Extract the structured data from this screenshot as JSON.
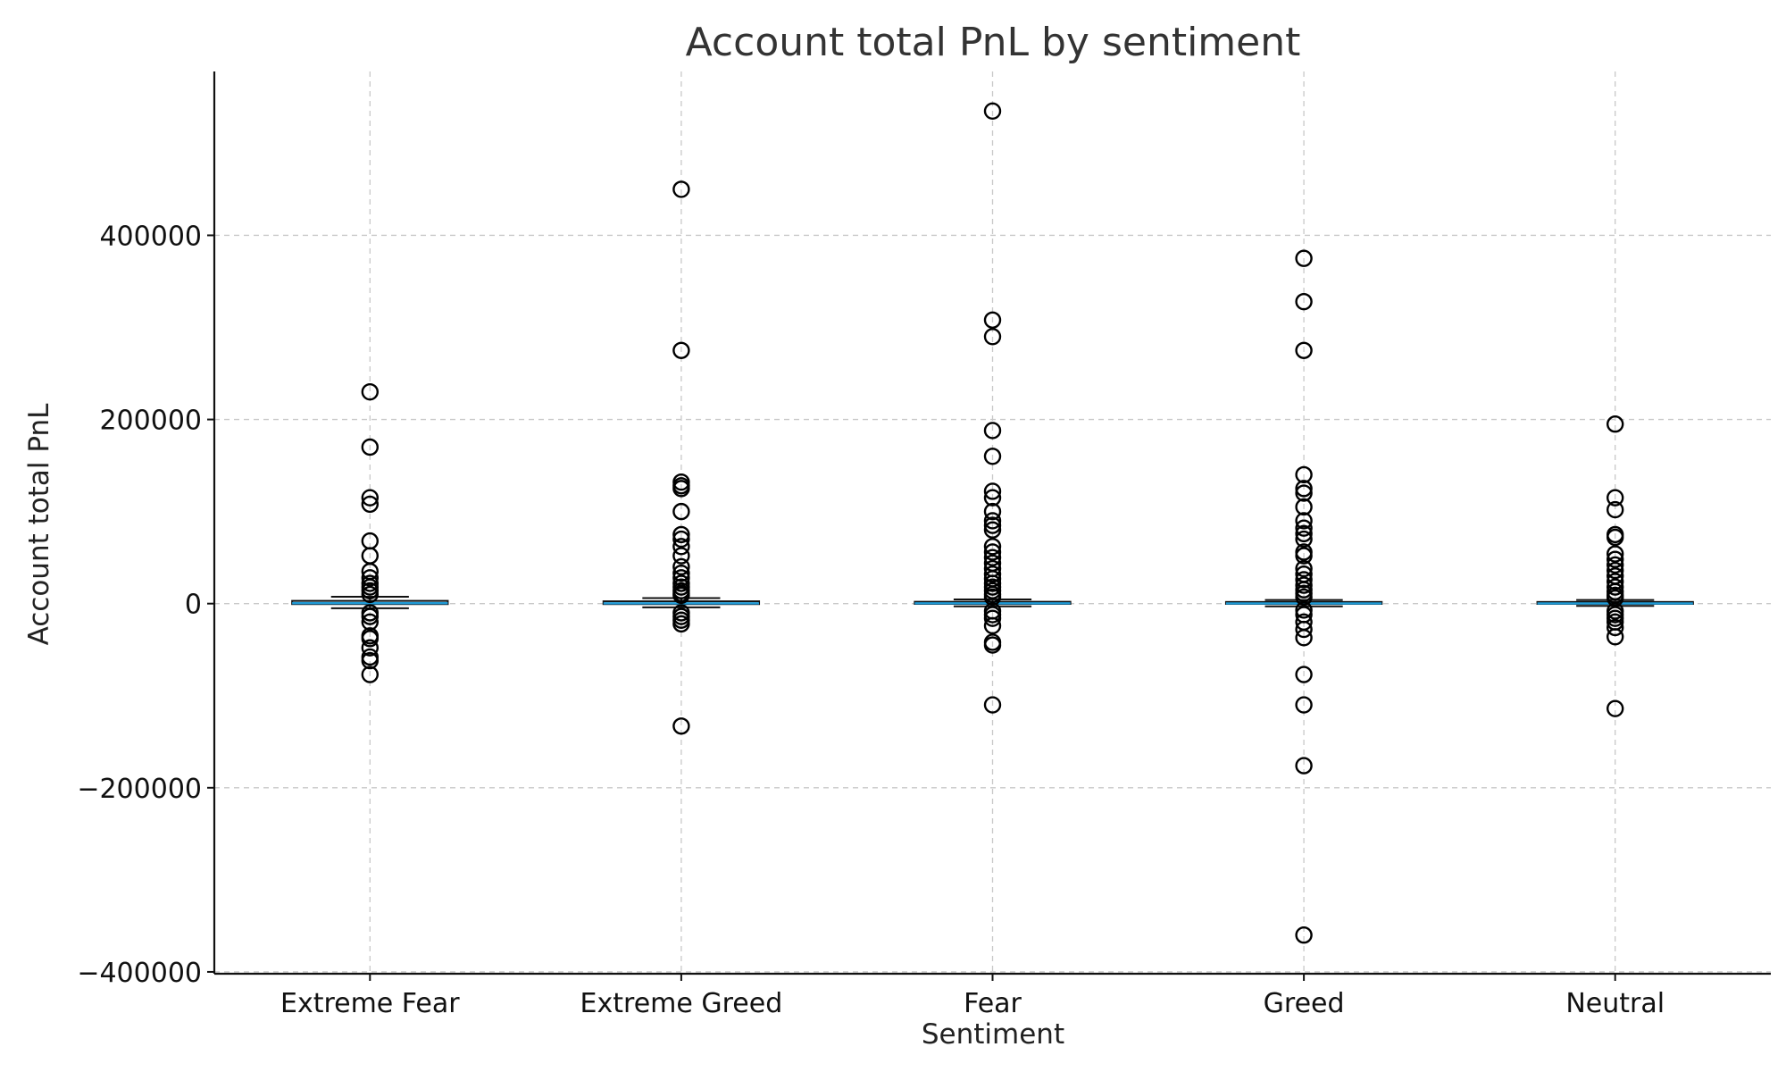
{
  "chart_data": {
    "type": "box",
    "title": "Account total PnL by sentiment",
    "xlabel": "Sentiment",
    "ylabel": "Account total PnL",
    "categories": [
      "Extreme Fear",
      "Extreme Greed",
      "Fear",
      "Greed",
      "Neutral"
    ],
    "ylim": [
      -402000,
      578000
    ],
    "yticks": [
      -400000,
      -200000,
      0,
      200000,
      400000
    ],
    "ytick_labels": [
      "−400000",
      "−200000",
      "0",
      "200000",
      "400000"
    ],
    "grid": true,
    "colors": {
      "median": "#1f9ad6",
      "box": "#111111",
      "flier": "#000000",
      "grid": "#c8c8c8"
    },
    "boxes": [
      {
        "category": "Extreme Fear",
        "q1": -500,
        "median": 500,
        "q3": 3000,
        "whisker_low": -5000,
        "whisker_high": 7500,
        "fliers": [
          230000,
          170000,
          115000,
          108000,
          68000,
          52000,
          35000,
          28000,
          22000,
          18000,
          14000,
          10000,
          -10000,
          -14000,
          -20000,
          -35000,
          -38000,
          -48000,
          -58000,
          -62000,
          -77000
        ]
      },
      {
        "category": "Extreme Greed",
        "q1": -500,
        "median": 300,
        "q3": 2500,
        "whisker_low": -4000,
        "whisker_high": 6000,
        "fliers": [
          450000,
          275000,
          132000,
          128000,
          125000,
          100000,
          75000,
          70000,
          62000,
          52000,
          40000,
          33000,
          28000,
          22000,
          18000,
          14000,
          11000,
          9000,
          -10000,
          -14000,
          -18000,
          -22000,
          -133000
        ]
      },
      {
        "category": "Fear",
        "q1": -300,
        "median": 300,
        "q3": 2000,
        "whisker_low": -3000,
        "whisker_high": 4500,
        "fliers": [
          535000,
          308000,
          290000,
          188000,
          160000,
          122000,
          115000,
          100000,
          90000,
          85000,
          80000,
          62000,
          56000,
          50000,
          44000,
          38000,
          32000,
          27000,
          22000,
          18000,
          14000,
          10000,
          7000,
          -8000,
          -12000,
          -16000,
          -24000,
          -42000,
          -45000,
          -110000
        ]
      },
      {
        "category": "Greed",
        "q1": -300,
        "median": 200,
        "q3": 1800,
        "whisker_low": -3000,
        "whisker_high": 4000,
        "fliers": [
          375000,
          328000,
          275000,
          140000,
          125000,
          120000,
          105000,
          90000,
          82000,
          76000,
          70000,
          56000,
          52000,
          38000,
          32000,
          26000,
          20000,
          15000,
          11000,
          7000,
          -7000,
          -12000,
          -20000,
          -28000,
          -37000,
          -77000,
          -110000,
          -176000,
          -360000
        ]
      },
      {
        "category": "Neutral",
        "q1": -300,
        "median": 200,
        "q3": 1800,
        "whisker_low": -2500,
        "whisker_high": 4000,
        "fliers": [
          195000,
          115000,
          102000,
          75000,
          72000,
          54000,
          48000,
          42000,
          36000,
          30000,
          24000,
          18000,
          13000,
          9000,
          6000,
          -8000,
          -12000,
          -16000,
          -20000,
          -26000,
          -36000,
          -114000
        ]
      }
    ]
  }
}
